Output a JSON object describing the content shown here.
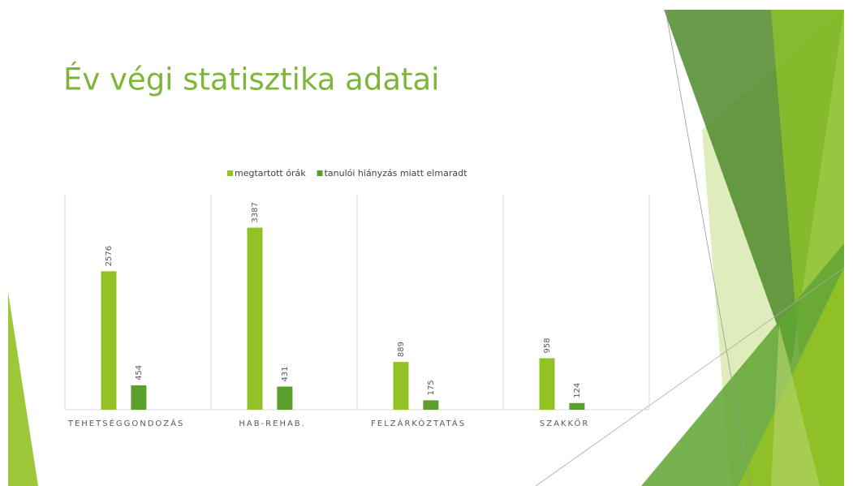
{
  "chart_data": {
    "type": "bar",
    "title": "Év végi statisztika adatai",
    "categories": [
      "TEHETSÉGGONDOZÁS",
      "HAB-REHAB.",
      "FELZÁRKÓZTATÁS",
      "SZAKKÖR"
    ],
    "series": [
      {
        "name": "megtartott órák",
        "color": "#92c225",
        "values": [
          2576,
          3387,
          889,
          958
        ]
      },
      {
        "name": "tanulói hiányzás miatt elmaradt",
        "color": "#5a9f2c",
        "values": [
          454,
          431,
          175,
          124
        ]
      }
    ],
    "ylim": [
      0,
      4000
    ]
  }
}
